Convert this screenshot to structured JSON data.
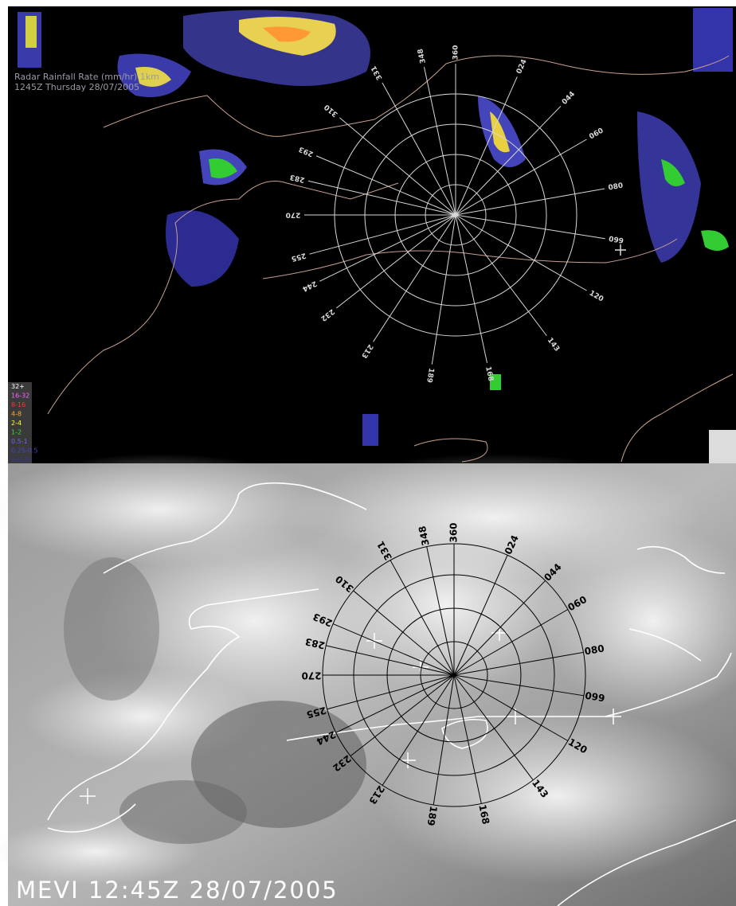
{
  "radar_panel": {
    "title": "Radar Rainfall Rate (mm/hr) 1km",
    "timestamp": "1245Z Thursday 28/07/2005",
    "legend": [
      {
        "label": "32+",
        "color": "#ffffff"
      },
      {
        "label": "16-32",
        "color": "#ff66ff"
      },
      {
        "label": "8-16",
        "color": "#ff3333"
      },
      {
        "label": "4-8",
        "color": "#ffaa33"
      },
      {
        "label": "2-4",
        "color": "#ffff33"
      },
      {
        "label": "1-2",
        "color": "#33dd33"
      },
      {
        "label": "0.5-1",
        "color": "#6666ff"
      },
      {
        "label": "0.25-0.5",
        "color": "#4444cc"
      },
      {
        "label": "0-0.25",
        "color": "#3333aa"
      }
    ],
    "bearings": [
      "360",
      "024",
      "044",
      "060",
      "080",
      "099",
      "120",
      "143",
      "168",
      "189",
      "213",
      "232",
      "244",
      "255",
      "270",
      "283",
      "293",
      "310",
      "331",
      "348"
    ]
  },
  "satellite_panel": {
    "caption": "MEVI 12:45Z 28/07/2005",
    "bearings": [
      "360",
      "024",
      "044",
      "060",
      "080",
      "099",
      "120",
      "143",
      "168",
      "189",
      "213",
      "232",
      "244",
      "255",
      "270",
      "283",
      "293",
      "310",
      "331",
      "348"
    ]
  }
}
